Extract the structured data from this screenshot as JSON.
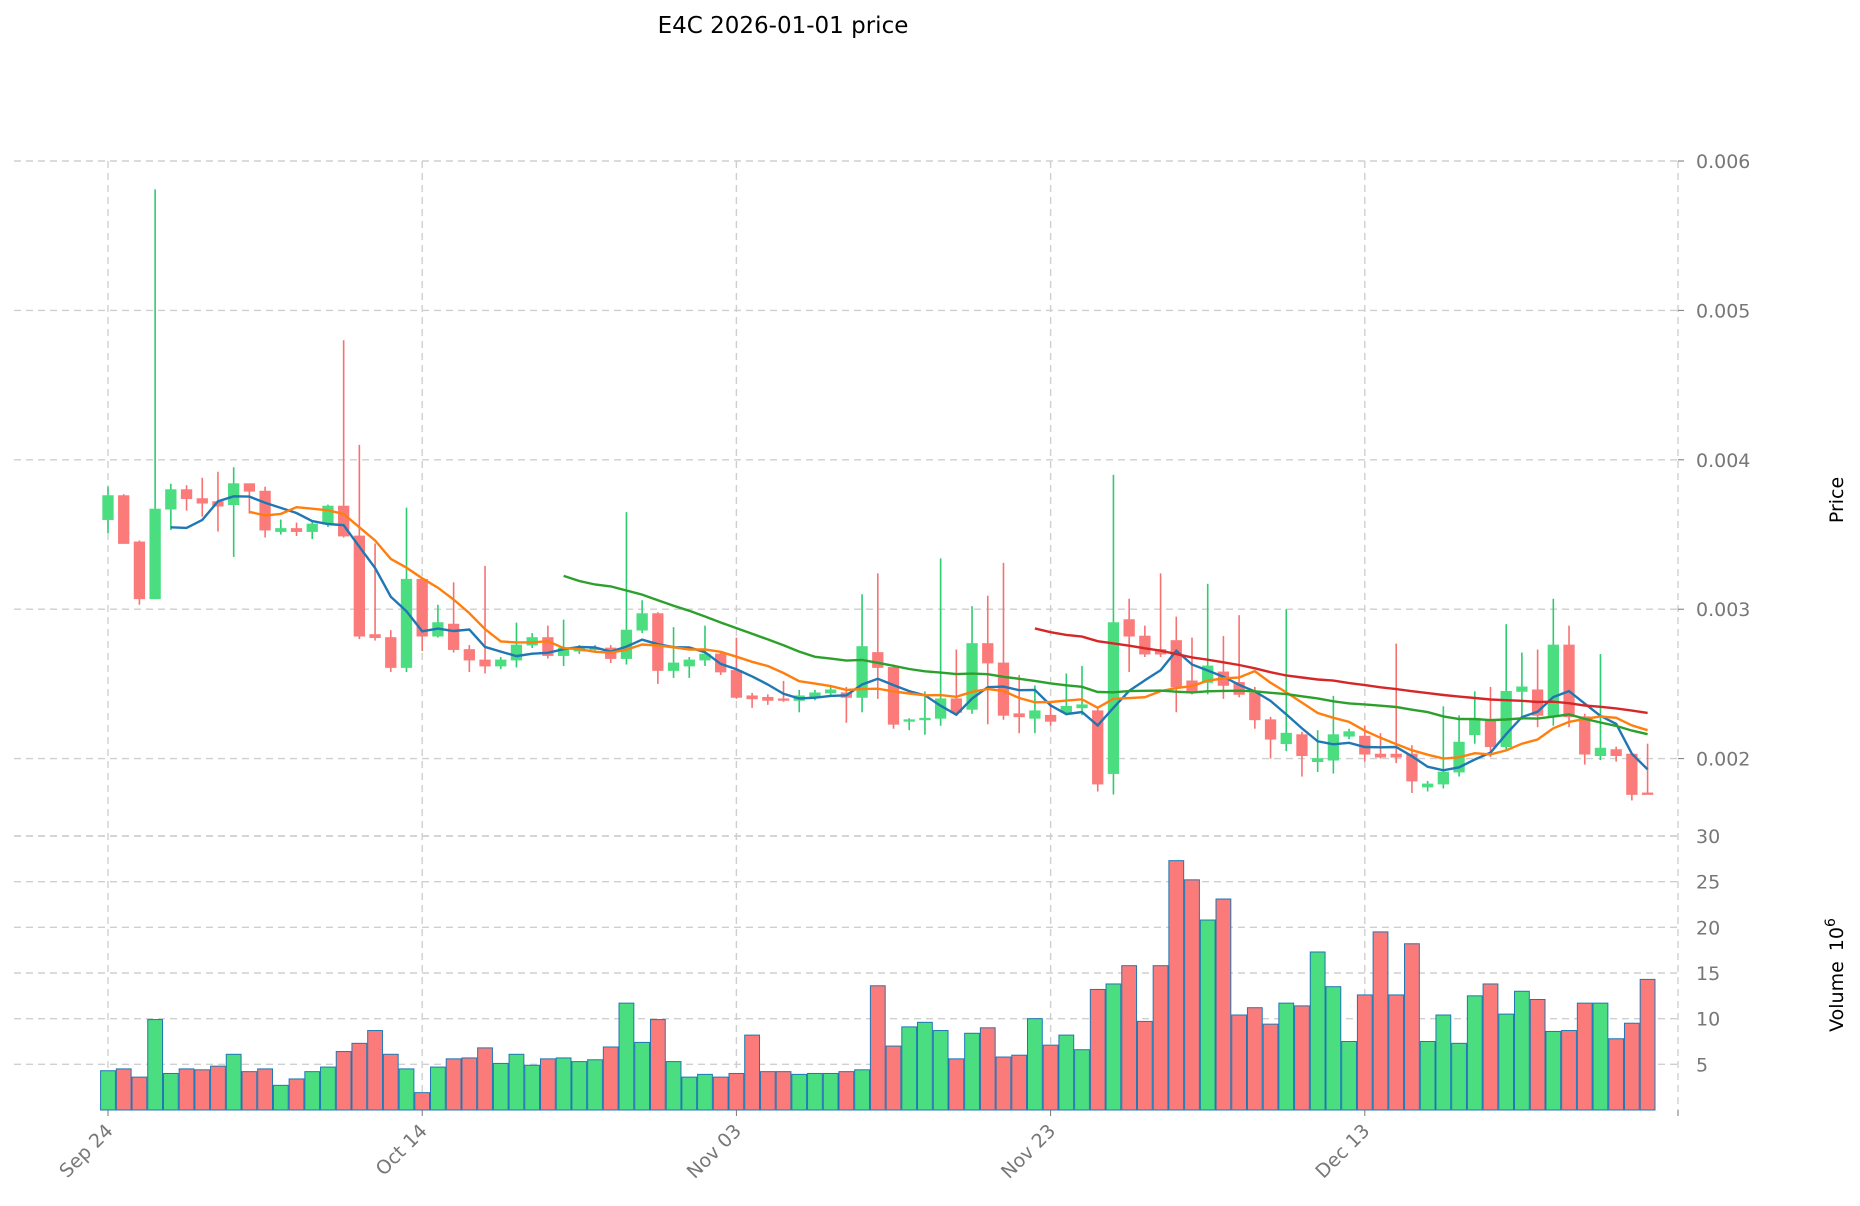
{
  "chart_data": {
    "type": "candlestick",
    "title": "E4C  2026-01-01  price",
    "ylabel": "Price",
    "volume_label": "Volume",
    "volume_exponent_label": "10",
    "volume_exponent": "6",
    "price_ylim": [
      0.001482,
      0.006
    ],
    "price_ticks": [
      "0.002",
      "0.003",
      "0.004",
      "0.005",
      "0.006"
    ],
    "volume_ylim": [
      0,
      30
    ],
    "volume_ticks": [
      "5",
      "10",
      "15",
      "20",
      "25",
      "30"
    ],
    "x_tick_labels": [
      {
        "index": 0,
        "label": "Sep 24"
      },
      {
        "index": 20,
        "label": "Oct 14"
      },
      {
        "index": 40,
        "label": "Nov 03"
      },
      {
        "index": 60,
        "label": "Nov 23"
      },
      {
        "index": 80,
        "label": "Dec 13"
      }
    ],
    "start_date": "Sep 24",
    "price_unit": 0.001,
    "ohlc": [
      [
        3.6,
        3.82,
        3.51,
        3.76
      ],
      [
        3.76,
        3.77,
        3.44,
        3.44
      ],
      [
        3.45,
        3.46,
        3.03,
        3.07
      ],
      [
        3.07,
        5.81,
        3.07,
        3.67
      ],
      [
        3.67,
        3.84,
        3.53,
        3.8
      ],
      [
        3.8,
        3.83,
        3.66,
        3.74
      ],
      [
        3.74,
        3.88,
        3.62,
        3.71
      ],
      [
        3.72,
        3.92,
        3.52,
        3.69
      ],
      [
        3.7,
        3.95,
        3.35,
        3.84
      ],
      [
        3.84,
        3.84,
        3.64,
        3.79
      ],
      [
        3.79,
        3.82,
        3.48,
        3.53
      ],
      [
        3.52,
        3.6,
        3.5,
        3.54
      ],
      [
        3.54,
        3.58,
        3.49,
        3.52
      ],
      [
        3.52,
        3.59,
        3.47,
        3.57
      ],
      [
        3.57,
        3.7,
        3.55,
        3.69
      ],
      [
        3.69,
        4.8,
        3.48,
        3.49
      ],
      [
        3.49,
        4.1,
        2.8,
        2.82
      ],
      [
        2.83,
        3.44,
        2.79,
        2.81
      ],
      [
        2.81,
        2.86,
        2.58,
        2.61
      ],
      [
        2.61,
        3.68,
        2.58,
        3.2
      ],
      [
        3.2,
        3.21,
        2.72,
        2.82
      ],
      [
        2.82,
        3.03,
        2.81,
        2.91
      ],
      [
        2.9,
        3.18,
        2.71,
        2.73
      ],
      [
        2.73,
        2.76,
        2.58,
        2.66
      ],
      [
        2.66,
        3.29,
        2.57,
        2.62
      ],
      [
        2.62,
        2.68,
        2.6,
        2.66
      ],
      [
        2.66,
        2.91,
        2.61,
        2.76
      ],
      [
        2.76,
        2.84,
        2.74,
        2.81
      ],
      [
        2.81,
        2.89,
        2.67,
        2.69
      ],
      [
        2.69,
        2.93,
        2.62,
        2.74
      ],
      [
        2.72,
        2.76,
        2.7,
        2.74
      ],
      [
        2.73,
        2.76,
        2.71,
        2.74
      ],
      [
        2.74,
        2.76,
        2.64,
        2.67
      ],
      [
        2.67,
        3.65,
        2.63,
        2.86
      ],
      [
        2.86,
        3.06,
        2.84,
        2.97
      ],
      [
        2.97,
        2.98,
        2.5,
        2.59
      ],
      [
        2.59,
        2.88,
        2.54,
        2.64
      ],
      [
        2.62,
        2.68,
        2.54,
        2.66
      ],
      [
        2.66,
        2.89,
        2.62,
        2.7
      ],
      [
        2.7,
        2.72,
        2.56,
        2.58
      ],
      [
        2.59,
        2.81,
        2.4,
        2.41
      ],
      [
        2.42,
        2.44,
        2.34,
        2.4
      ],
      [
        2.41,
        2.43,
        2.36,
        2.39
      ],
      [
        2.4,
        2.52,
        2.38,
        2.39
      ],
      [
        2.39,
        2.46,
        2.31,
        2.42
      ],
      [
        2.41,
        2.46,
        2.39,
        2.44
      ],
      [
        2.44,
        2.49,
        2.42,
        2.46
      ],
      [
        2.44,
        2.48,
        2.24,
        2.41
      ],
      [
        2.41,
        3.1,
        2.31,
        2.75
      ],
      [
        2.71,
        3.24,
        2.4,
        2.61
      ],
      [
        2.61,
        2.63,
        2.2,
        2.23
      ],
      [
        2.25,
        2.27,
        2.19,
        2.26
      ],
      [
        2.26,
        2.45,
        2.16,
        2.27
      ],
      [
        2.27,
        3.34,
        2.22,
        2.4
      ],
      [
        2.4,
        2.73,
        2.29,
        2.31
      ],
      [
        2.33,
        3.02,
        2.3,
        2.77
      ],
      [
        2.77,
        3.09,
        2.23,
        2.64
      ],
      [
        2.64,
        3.31,
        2.26,
        2.29
      ],
      [
        2.3,
        2.56,
        2.17,
        2.28
      ],
      [
        2.27,
        2.49,
        2.17,
        2.32
      ],
      [
        2.29,
        2.38,
        2.22,
        2.25
      ],
      [
        2.31,
        2.57,
        2.29,
        2.35
      ],
      [
        2.34,
        2.62,
        2.29,
        2.36
      ],
      [
        2.32,
        2.34,
        1.78,
        1.83
      ],
      [
        1.9,
        3.9,
        1.76,
        2.91
      ],
      [
        2.93,
        3.07,
        2.58,
        2.82
      ],
      [
        2.82,
        2.89,
        2.68,
        2.7
      ],
      [
        2.73,
        3.24,
        2.68,
        2.7
      ],
      [
        2.79,
        2.95,
        2.31,
        2.48
      ],
      [
        2.52,
        2.81,
        2.43,
        2.45
      ],
      [
        2.51,
        3.17,
        2.43,
        2.62
      ],
      [
        2.58,
        2.82,
        2.4,
        2.49
      ],
      [
        2.51,
        2.96,
        2.41,
        2.43
      ],
      [
        2.44,
        2.48,
        2.2,
        2.26
      ],
      [
        2.26,
        2.28,
        2.0,
        2.13
      ],
      [
        2.1,
        3.0,
        2.05,
        2.17
      ],
      [
        2.16,
        2.18,
        1.88,
        2.02
      ],
      [
        1.98,
        2.19,
        1.91,
        2.0
      ],
      [
        1.99,
        2.42,
        1.9,
        2.16
      ],
      [
        2.15,
        2.2,
        2.13,
        2.18
      ],
      [
        2.15,
        2.22,
        1.98,
        2.03
      ],
      [
        2.03,
        2.17,
        2.0,
        2.01
      ],
      [
        2.03,
        2.77,
        1.97,
        2.01
      ],
      [
        2.03,
        2.09,
        1.77,
        1.85
      ],
      [
        1.81,
        1.85,
        1.78,
        1.83
      ],
      [
        1.83,
        2.35,
        1.8,
        1.91
      ],
      [
        1.91,
        2.29,
        1.88,
        2.11
      ],
      [
        2.16,
        2.45,
        2.1,
        2.27
      ],
      [
        2.25,
        2.48,
        2.01,
        2.08
      ],
      [
        2.08,
        2.9,
        2.06,
        2.45
      ],
      [
        2.45,
        2.71,
        2.26,
        2.48
      ],
      [
        2.46,
        2.73,
        2.21,
        2.29
      ],
      [
        2.28,
        3.07,
        2.22,
        2.76
      ],
      [
        2.76,
        2.89,
        2.21,
        2.28
      ],
      [
        2.28,
        2.3,
        1.96,
        2.03
      ],
      [
        2.02,
        2.7,
        1.99,
        2.07
      ],
      [
        2.06,
        2.08,
        1.98,
        2.02
      ],
      [
        2.03,
        2.04,
        1.72,
        1.76
      ],
      [
        1.77,
        2.1,
        1.76,
        1.76
      ]
    ],
    "volume": [
      4.3,
      4.5,
      3.6,
      9.9,
      4.0,
      4.5,
      4.4,
      4.8,
      6.1,
      4.2,
      4.5,
      2.7,
      3.4,
      4.2,
      4.7,
      6.4,
      7.3,
      8.7,
      6.1,
      4.5,
      1.9,
      4.7,
      5.6,
      5.7,
      6.8,
      5.1,
      6.1,
      4.9,
      5.6,
      5.7,
      5.3,
      5.5,
      6.9,
      11.7,
      7.4,
      9.9,
      5.3,
      3.6,
      3.9,
      3.6,
      4.0,
      8.2,
      4.2,
      4.2,
      3.9,
      4.0,
      4.0,
      4.2,
      4.4,
      13.6,
      7.0,
      9.1,
      9.6,
      8.7,
      5.6,
      8.4,
      9.0,
      5.8,
      6.0,
      10.0,
      7.1,
      8.2,
      6.6,
      13.2,
      13.8,
      15.8,
      9.7,
      15.8,
      27.3,
      25.2,
      20.8,
      23.1,
      10.4,
      11.2,
      9.4,
      11.7,
      11.4,
      17.3,
      13.5,
      7.5,
      12.6,
      19.5,
      12.6,
      18.2,
      7.5,
      10.4,
      7.3,
      12.5,
      13.8,
      10.5,
      13.0,
      12.1,
      8.6,
      8.7,
      11.7,
      11.7,
      7.8,
      9.5,
      14.3
    ],
    "moving_averages": [
      {
        "window": 5,
        "color": "#1f77b4"
      },
      {
        "window": 10,
        "color": "#ff7f0e"
      },
      {
        "window": 30,
        "color": "#2ca02c"
      },
      {
        "window": 60,
        "color": "#d62728"
      }
    ],
    "colors": {
      "up": "#4ade80",
      "down": "#fb7b7b",
      "up_edge": "#2ecc71",
      "down_edge": "#f87171"
    }
  }
}
